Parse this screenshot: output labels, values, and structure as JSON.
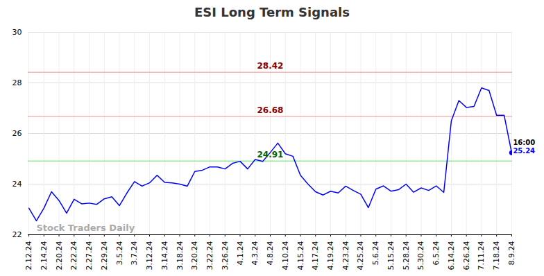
{
  "chart_data": {
    "type": "line",
    "title": "ESI Long Term Signals",
    "categories": [
      "2.12.24",
      null,
      "2.14.24",
      null,
      "2.20.24",
      null,
      "2.22.24",
      null,
      "2.27.24",
      null,
      "2.29.24",
      null,
      "3.5.24",
      null,
      "3.7.24",
      null,
      "3.12.24",
      null,
      "3.14.24",
      null,
      "3.18.24",
      null,
      "3.20.24",
      null,
      "3.22.24",
      null,
      "3.26.24",
      null,
      "4.1.24",
      null,
      "4.3.24",
      null,
      "4.8.24",
      null,
      "4.10.24",
      null,
      "4.15.24",
      null,
      "4.17.24",
      null,
      "4.19.24",
      null,
      "4.23.24",
      null,
      "4.25.24",
      null,
      "5.6.24",
      null,
      "5.15.24",
      null,
      "5.28.24",
      null,
      "5.30.24",
      null,
      "6.5.24",
      null,
      "6.14.24",
      null,
      "6.26.24",
      null,
      "7.11.24",
      null,
      "7.18.24",
      null,
      "8.9.24"
    ],
    "values": [
      23.05,
      22.55,
      23.05,
      23.7,
      23.35,
      22.85,
      23.4,
      23.22,
      23.25,
      23.2,
      23.42,
      23.5,
      23.15,
      23.65,
      24.1,
      23.92,
      24.05,
      24.35,
      24.07,
      24.05,
      24.0,
      23.92,
      24.5,
      24.55,
      24.68,
      24.68,
      24.6,
      24.82,
      24.9,
      24.6,
      24.97,
      24.9,
      25.25,
      25.62,
      25.2,
      25.1,
      24.35,
      24.0,
      23.7,
      23.57,
      23.72,
      23.65,
      23.92,
      23.75,
      23.6,
      23.07,
      23.8,
      23.93,
      23.72,
      23.78,
      24.0,
      23.68,
      23.85,
      23.75,
      23.93,
      23.67,
      26.5,
      27.3,
      27.03,
      27.07,
      27.8,
      27.7,
      26.72,
      26.72,
      25.24
    ],
    "color": "#0000ff",
    "ylim": [
      22,
      30
    ],
    "yticks": [
      22,
      24,
      26,
      28,
      30
    ],
    "grid": true,
    "reference_lines": [
      {
        "value": 28.42,
        "label": "28.42",
        "color": "#f5b5b5",
        "label_color": "#8b0000"
      },
      {
        "value": 26.68,
        "label": "26.68",
        "color": "#f5b5b5",
        "label_color": "#8b0000"
      },
      {
        "value": 24.91,
        "label": "24.91",
        "color": "#90ee90",
        "label_color": "#006400"
      }
    ],
    "last_point": {
      "time": "16:00",
      "label": "25.24"
    },
    "watermark": "Stock Traders Daily"
  }
}
